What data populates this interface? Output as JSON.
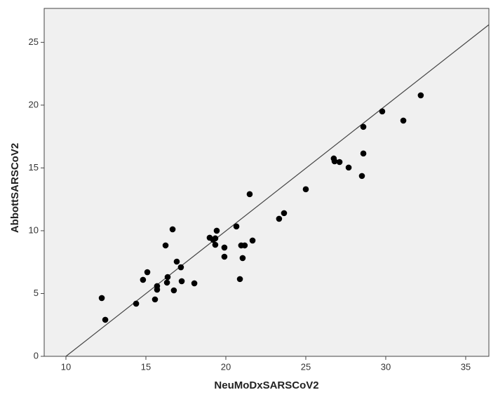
{
  "chart_data": {
    "type": "scatter",
    "x_label": "NeuMoDxSARSCoV2",
    "y_label": "AbbottSARSCoV2",
    "x": [
      12.24,
      12.46,
      14.39,
      14.82,
      15.09,
      15.57,
      15.7,
      15.7,
      16.23,
      16.32,
      16.36,
      16.67,
      16.75,
      16.93,
      17.19,
      17.24,
      18.03,
      18.99,
      19.21,
      19.34,
      19.34,
      19.43,
      19.91,
      19.91,
      20.66,
      20.88,
      20.96,
      21.05,
      21.18,
      21.49,
      21.67,
      23.33,
      23.64,
      25.0,
      26.75,
      26.8,
      27.11,
      27.68,
      28.51,
      28.6,
      28.6,
      29.78,
      31.1,
      32.19
    ],
    "series": [
      {
        "color": "#000000",
        "values": [
          4.64,
          2.91,
          4.19,
          6.09,
          6.7,
          4.53,
          5.31,
          5.59,
          8.83,
          5.87,
          6.31,
          10.11,
          5.25,
          7.54,
          7.09,
          5.98,
          5.81,
          9.44,
          9.27,
          8.88,
          9.39,
          10.0,
          8.66,
          7.93,
          10.34,
          6.15,
          8.83,
          7.82,
          8.83,
          12.91,
          9.22,
          10.95,
          11.4,
          13.3,
          15.75,
          15.53,
          15.47,
          15.03,
          14.36,
          18.27,
          16.15,
          19.5,
          18.77,
          20.78
        ]
      }
    ],
    "reference_line": {
      "x": [
        10,
        36.45
      ],
      "y": [
        0,
        26.4
      ],
      "color": "#444444"
    },
    "xlim": [
      8.64,
      36.45
    ],
    "ylim": [
      0,
      27.7
    ],
    "xticks": [
      10,
      15,
      20,
      25,
      30,
      35
    ],
    "yticks": [
      0,
      5,
      10,
      15,
      20,
      25
    ],
    "background": "#f0f0f0"
  }
}
